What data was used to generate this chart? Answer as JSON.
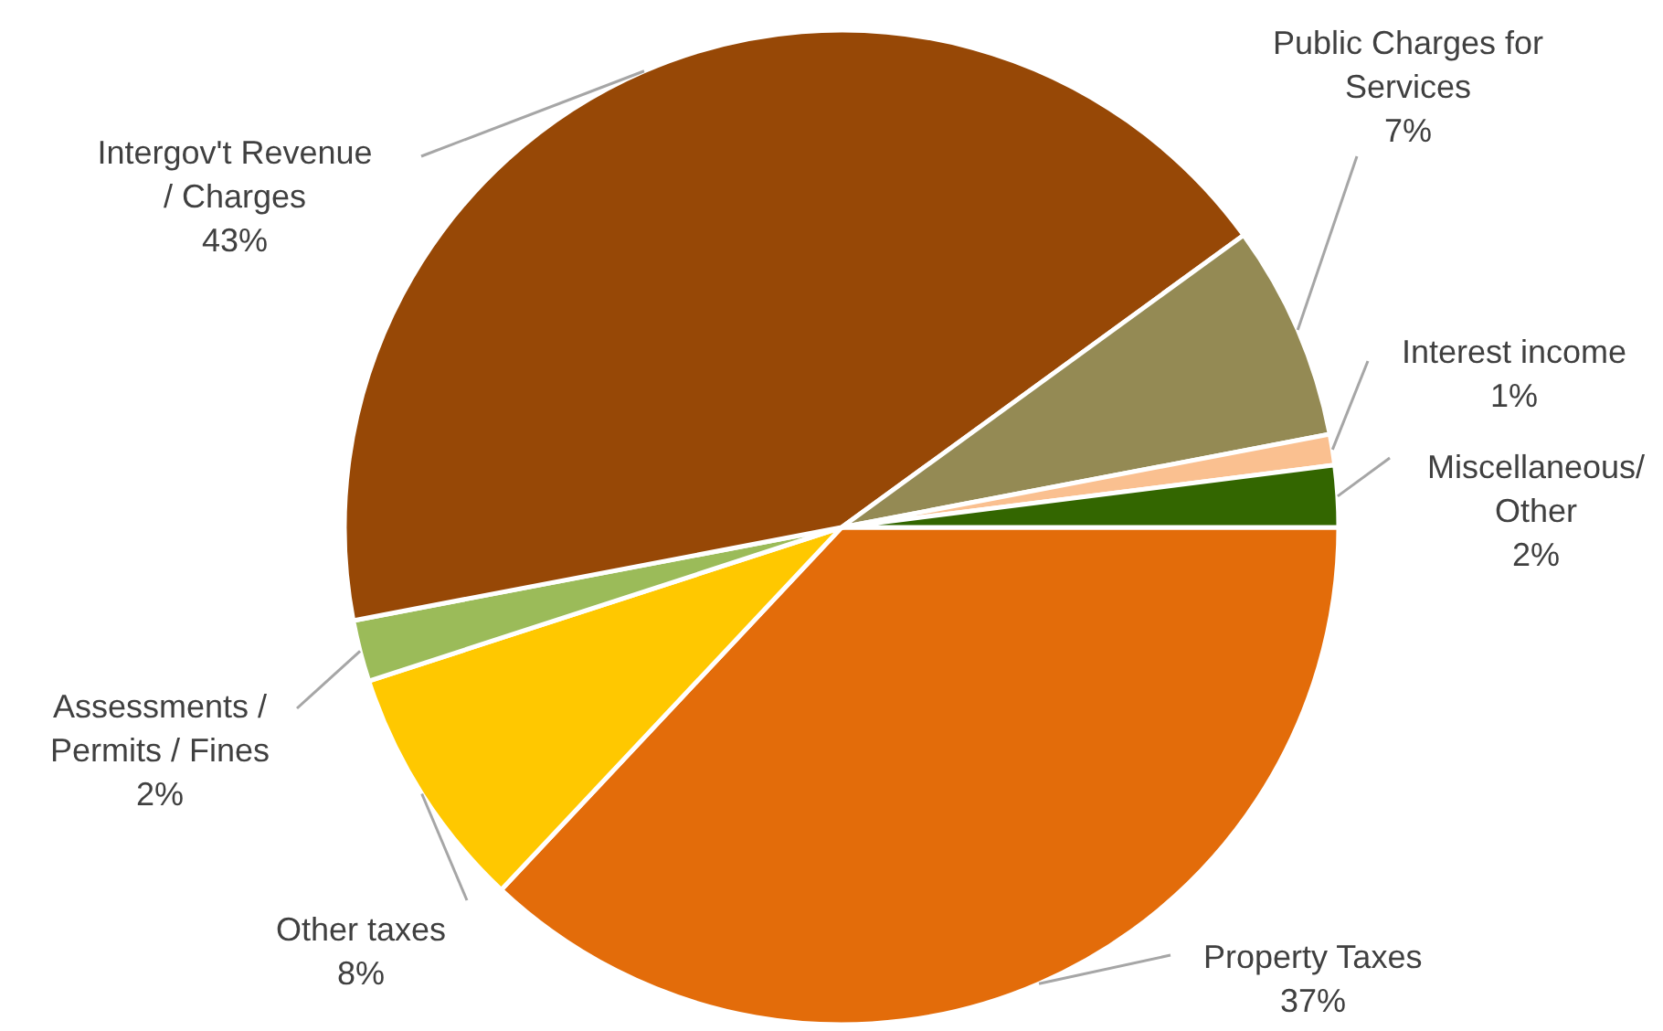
{
  "chart_data": {
    "type": "pie",
    "categories": [
      "Property Taxes",
      "Other taxes",
      "Assessments / Permits / Fines",
      "Intergov't Revenue / Charges",
      "Public Charges for Services",
      "Interest income",
      "Miscellaneous/ Other"
    ],
    "values": [
      37,
      8,
      2,
      43,
      7,
      1,
      2
    ],
    "value_labels": [
      "37%",
      "8%",
      "2%",
      "43%",
      "7%",
      "1%",
      "2%"
    ],
    "colors": [
      "#e36c0a",
      "#ffc800",
      "#9bbb59",
      "#974806",
      "#948a54",
      "#fac090",
      "#336600"
    ],
    "legend": false
  }
}
